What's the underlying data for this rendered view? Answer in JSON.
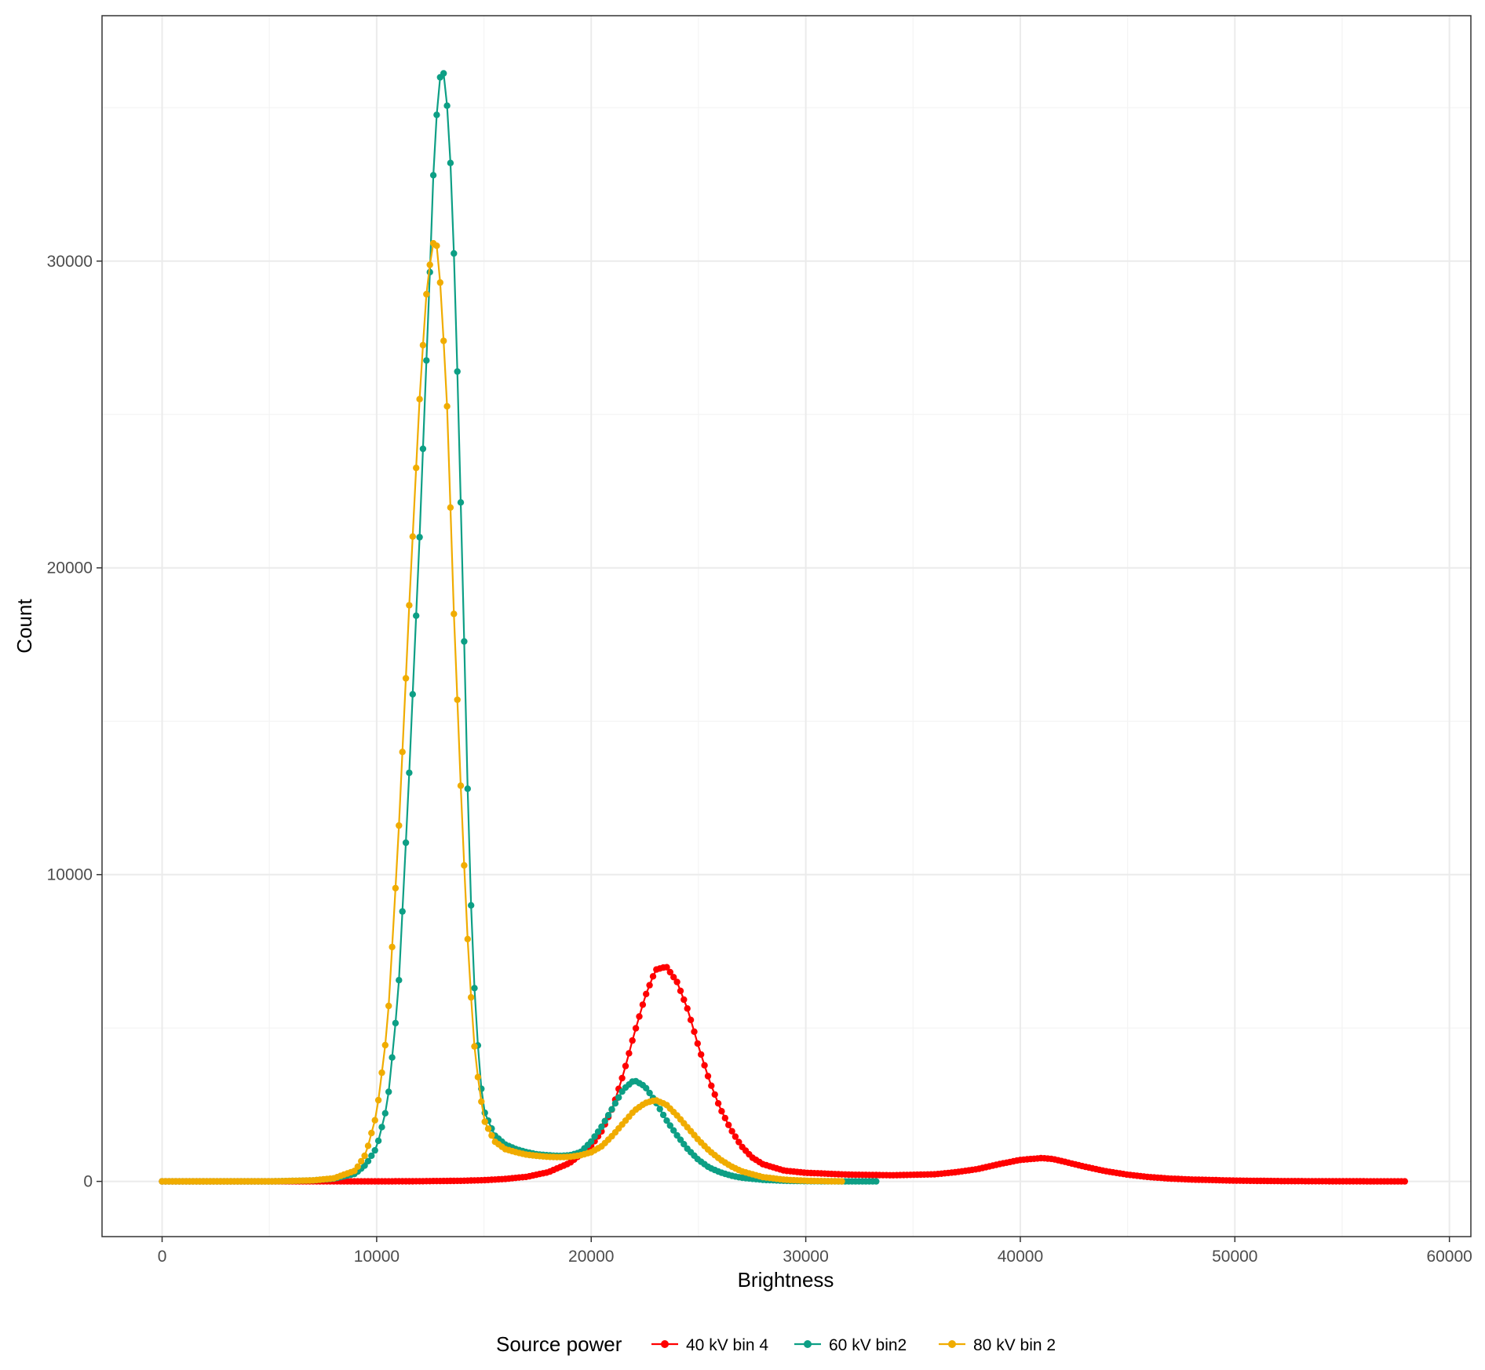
{
  "chart_data": {
    "type": "line",
    "title": "",
    "xlabel": "Brightness",
    "ylabel": "Count",
    "xlim": [
      -2800,
      61000
    ],
    "ylim": [
      -1800,
      38000
    ],
    "x_ticks": [
      0,
      10000,
      20000,
      30000,
      40000,
      50000,
      60000
    ],
    "x_tick_labels": [
      "0",
      "10000",
      "20000",
      "30000",
      "40000",
      "50000",
      "60000"
    ],
    "y_ticks": [
      0,
      10000,
      20000,
      30000
    ],
    "y_tick_labels": [
      "0",
      "10000",
      "20000",
      "30000"
    ],
    "grid": true,
    "markers": true,
    "legend": {
      "title": "Source power",
      "position": "bottom"
    },
    "series": [
      {
        "name": "40 kV bin 4",
        "color": "#ff0000",
        "x": [
          0,
          6000,
          8000,
          10000,
          12000,
          14000,
          15000,
          16000,
          17000,
          18000,
          19000,
          20000,
          20500,
          21000,
          21500,
          22000,
          22500,
          23000,
          23500,
          24000,
          24500,
          25000,
          25500,
          26000,
          26500,
          27000,
          27500,
          28000,
          29000,
          30000,
          32000,
          34000,
          36000,
          37000,
          38000,
          39000,
          40000,
          40500,
          41000,
          41500,
          42000,
          43000,
          44000,
          45000,
          46000,
          47000,
          48000,
          50000,
          52000,
          55000,
          58000
        ],
        "y": [
          0,
          0,
          0,
          0,
          5,
          20,
          40,
          80,
          150,
          300,
          600,
          1150,
          1650,
          2400,
          3500,
          4800,
          6000,
          6900,
          7000,
          6500,
          5600,
          4400,
          3300,
          2400,
          1700,
          1150,
          780,
          560,
          350,
          280,
          220,
          200,
          230,
          300,
          400,
          560,
          700,
          730,
          760,
          730,
          650,
          480,
          330,
          220,
          140,
          90,
          60,
          25,
          10,
          3,
          0
        ]
      },
      {
        "name": "60 kV bin2",
        "color": "#0d9f85",
        "x": [
          0,
          5000,
          7000,
          8000,
          9000,
          9500,
          10000,
          10500,
          11000,
          11500,
          12000,
          12500,
          12700,
          13000,
          13200,
          13500,
          13700,
          14000,
          14300,
          14500,
          14800,
          15000,
          15500,
          16000,
          16500,
          17000,
          17500,
          18000,
          18500,
          19000,
          19500,
          20000,
          20500,
          21000,
          21500,
          22000,
          22500,
          23000,
          23500,
          24000,
          24500,
          25000,
          25500,
          26000,
          26500,
          27000,
          28000,
          29000,
          30000,
          31000,
          32000,
          33400
        ],
        "y": [
          0,
          0,
          30,
          90,
          250,
          550,
          1100,
          2500,
          6000,
          13000,
          21000,
          30000,
          34000,
          36300,
          36000,
          32500,
          28000,
          20000,
          11000,
          7000,
          3500,
          2300,
          1500,
          1200,
          1050,
          950,
          880,
          850,
          830,
          850,
          950,
          1300,
          1800,
          2400,
          3000,
          3300,
          3100,
          2600,
          2000,
          1500,
          1050,
          700,
          450,
          300,
          190,
          120,
          50,
          20,
          8,
          3,
          1,
          0
        ]
      },
      {
        "name": "80 kV bin 2",
        "color": "#f0ac00",
        "x": [
          0,
          5000,
          7000,
          8000,
          9000,
          9500,
          10000,
          10500,
          11000,
          11500,
          12000,
          12300,
          12600,
          12800,
          13000,
          13300,
          13600,
          14000,
          14300,
          14600,
          15000,
          15500,
          16000,
          16500,
          17000,
          17500,
          18000,
          18500,
          19000,
          19500,
          20000,
          20500,
          21000,
          21500,
          22000,
          22500,
          23000,
          23500,
          24000,
          24500,
          25000,
          25500,
          26000,
          26500,
          27000,
          28000,
          29000,
          30000,
          31000,
          31800
        ],
        "y": [
          0,
          0,
          30,
          100,
          350,
          900,
          2200,
          5000,
          11000,
          18500,
          25500,
          28800,
          30600,
          30500,
          29000,
          25000,
          18500,
          11500,
          7000,
          4000,
          2000,
          1300,
          1050,
          950,
          870,
          830,
          800,
          790,
          800,
          850,
          950,
          1150,
          1500,
          1900,
          2300,
          2550,
          2650,
          2500,
          2150,
          1750,
          1350,
          1000,
          720,
          500,
          330,
          140,
          55,
          20,
          6,
          0
        ]
      }
    ]
  },
  "colors": {
    "panel_border": "#333333",
    "grid_major": "#ebebeb",
    "grid_minor": "#f4f4f4",
    "background": "#ffffff"
  }
}
